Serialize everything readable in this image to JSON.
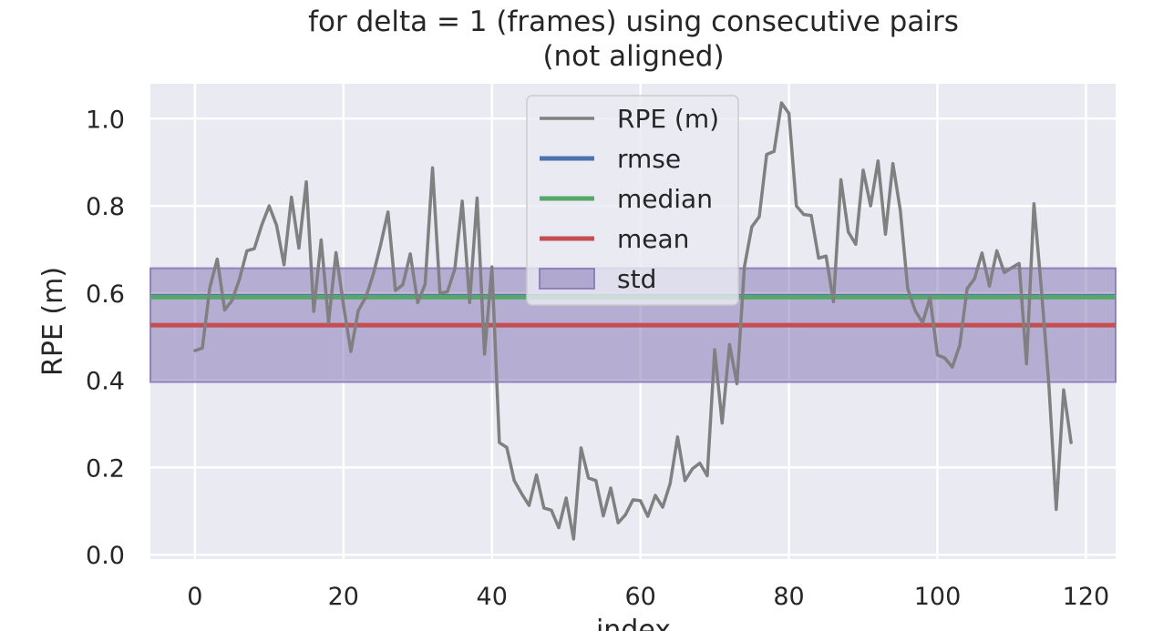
{
  "chart_data": {
    "type": "line",
    "title_lines": [
      "for delta = 1 (frames) using consecutive pairs",
      "(not aligned)"
    ],
    "xlabel": "index",
    "ylabel": "RPE (m)",
    "xlim": [
      -6,
      124
    ],
    "ylim": [
      -0.01,
      1.08
    ],
    "xticks": [
      0,
      20,
      40,
      60,
      80,
      100,
      120
    ],
    "yticks": [
      0.0,
      0.2,
      0.4,
      0.6,
      0.8,
      1.0
    ],
    "ytick_labels": [
      "0.0",
      "0.2",
      "0.4",
      "0.6",
      "0.8",
      "1.0"
    ],
    "grid": true,
    "legend_position": "top-center",
    "series": [
      {
        "name": "RPE (m)",
        "color": "#808080",
        "values": [
          0.468,
          0.474,
          0.612,
          0.678,
          0.561,
          0.583,
          0.632,
          0.697,
          0.702,
          0.756,
          0.8,
          0.755,
          0.665,
          0.82,
          0.703,
          0.855,
          0.558,
          0.722,
          0.533,
          0.693,
          0.573,
          0.466,
          0.56,
          0.59,
          0.642,
          0.71,
          0.786,
          0.606,
          0.619,
          0.69,
          0.578,
          0.62,
          0.887,
          0.6,
          0.603,
          0.655,
          0.811,
          0.578,
          0.818,
          0.46,
          0.66,
          0.257,
          0.246,
          0.17,
          0.14,
          0.113,
          0.183,
          0.107,
          0.102,
          0.062,
          0.13,
          0.036,
          0.245,
          0.176,
          0.17,
          0.089,
          0.153,
          0.073,
          0.092,
          0.126,
          0.124,
          0.088,
          0.136,
          0.109,
          0.163,
          0.27,
          0.17,
          0.197,
          0.21,
          0.181,
          0.47,
          0.302,
          0.482,
          0.392,
          0.66,
          0.752,
          0.775,
          0.918,
          0.925,
          1.036,
          1.012,
          0.8,
          0.78,
          0.778,
          0.68,
          0.685,
          0.58,
          0.86,
          0.74,
          0.712,
          0.882,
          0.8,
          0.903,
          0.735,
          0.897,
          0.79,
          0.61,
          0.56,
          0.532,
          0.59,
          0.458,
          0.451,
          0.43,
          0.48,
          0.61,
          0.633,
          0.692,
          0.616,
          0.697,
          0.647,
          0.658,
          0.668,
          0.438,
          0.805,
          0.609,
          0.393,
          0.104,
          0.378,
          0.257
        ]
      },
      {
        "name": "rmse",
        "color": "#4c72b0",
        "value": 0.5927
      },
      {
        "name": "median",
        "color": "#55a868",
        "value": 0.5905
      },
      {
        "name": "mean",
        "color": "#c44e52",
        "value": 0.5265
      },
      {
        "name": "std",
        "color": "#8172b2",
        "range": [
          0.396,
          0.657
        ]
      }
    ]
  }
}
